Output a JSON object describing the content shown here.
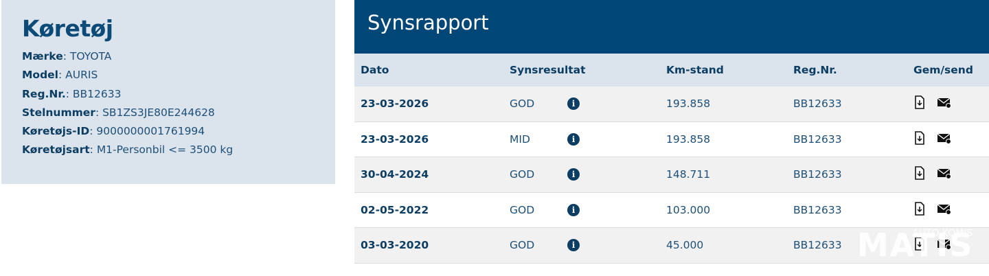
{
  "vehicle": {
    "title": "Køretøj",
    "fields": [
      {
        "label": "Mærke",
        "value": "TOYOTA"
      },
      {
        "label": "Model",
        "value": "AURIS"
      },
      {
        "label": "Reg.Nr.",
        "value": "BB12633"
      },
      {
        "label": "Stelnummer",
        "value": "SB1ZS3JE80E244628"
      },
      {
        "label": "Køretøjs-ID",
        "value": "9000000001761994"
      },
      {
        "label": "Køretøjsart",
        "value": "M1-Personbil <= 3500 kg"
      }
    ]
  },
  "report": {
    "title": "Synsrapport",
    "columns": [
      "Dato",
      "Synsresultat",
      "Km-stand",
      "Reg.Nr.",
      "Gem/send"
    ],
    "rows": [
      {
        "date": "23-03-2026",
        "result": "GOD",
        "km": "193.858",
        "reg": "BB12633"
      },
      {
        "date": "23-03-2026",
        "result": "MID",
        "km": "193.858",
        "reg": "BB12633"
      },
      {
        "date": "30-04-2024",
        "result": "GOD",
        "km": "148.711",
        "reg": "BB12633"
      },
      {
        "date": "02-05-2022",
        "result": "GOD",
        "km": "103.000",
        "reg": "BB12633"
      },
      {
        "date": "03-03-2020",
        "result": "GOD",
        "km": "45.000",
        "reg": "BB12633"
      }
    ],
    "icons": {
      "info": "info-icon",
      "save": "file-download-icon",
      "send": "mail-send-icon"
    }
  },
  "watermark": {
    "small": "AUTO KOMIS",
    "big": "MATIS"
  },
  "colors": {
    "header": "#004677",
    "panel": "#dbe4ed",
    "text": "#0c3d63"
  }
}
